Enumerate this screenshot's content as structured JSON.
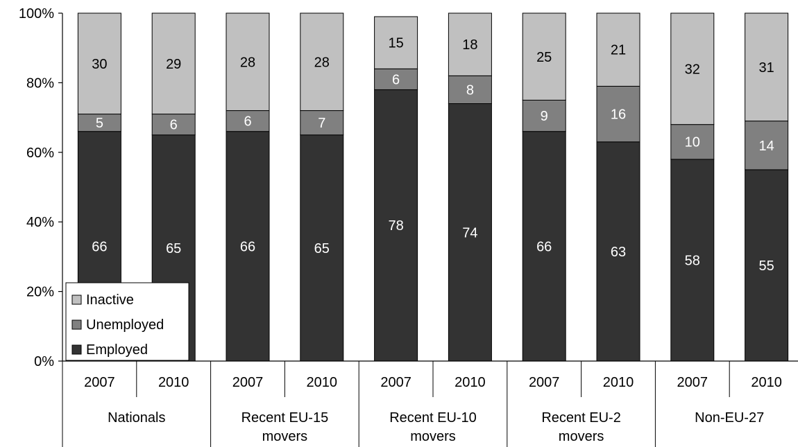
{
  "chart_data": {
    "type": "bar",
    "stacked": true,
    "groups": [
      "Nationals",
      "Recent EU-15 movers",
      "Recent EU-10 movers",
      "Recent EU-2 movers",
      "Non-EU-27"
    ],
    "group_label_lines": [
      [
        "Nationals"
      ],
      [
        "Recent EU-15",
        "movers"
      ],
      [
        "Recent EU-10",
        "movers"
      ],
      [
        "Recent EU-2",
        "movers"
      ],
      [
        "Non-EU-27"
      ]
    ],
    "years": [
      "2007",
      "2010"
    ],
    "categories": [
      "Nationals 2007",
      "Nationals 2010",
      "Recent EU-15 movers 2007",
      "Recent EU-15 movers 2010",
      "Recent EU-10 movers 2007",
      "Recent EU-10 movers 2010",
      "Recent EU-2 movers 2007",
      "Recent EU-2 movers 2010",
      "Non-EU-27 2007",
      "Non-EU-27 2010"
    ],
    "series": [
      {
        "name": "Employed",
        "values": [
          66,
          65,
          66,
          65,
          78,
          74,
          66,
          63,
          58,
          55
        ],
        "color": "#333333"
      },
      {
        "name": "Unemployed",
        "values": [
          5,
          6,
          6,
          7,
          6,
          8,
          9,
          16,
          10,
          14
        ],
        "color": "#808080"
      },
      {
        "name": "Inactive",
        "values": [
          30,
          29,
          28,
          28,
          15,
          18,
          25,
          21,
          32,
          31
        ],
        "color": "#c0c0c0"
      }
    ],
    "label_colors": {
      "Employed": "#ffffff",
      "Unemployed": "#ffffff",
      "Inactive": "#000000"
    },
    "yticks": [
      "0%",
      "20%",
      "40%",
      "60%",
      "80%",
      "100%"
    ],
    "ylim": [
      0,
      100
    ],
    "grid": false,
    "legend_position": "bottom-left",
    "legend": [
      "Inactive",
      "Unemployed",
      "Employed"
    ]
  }
}
